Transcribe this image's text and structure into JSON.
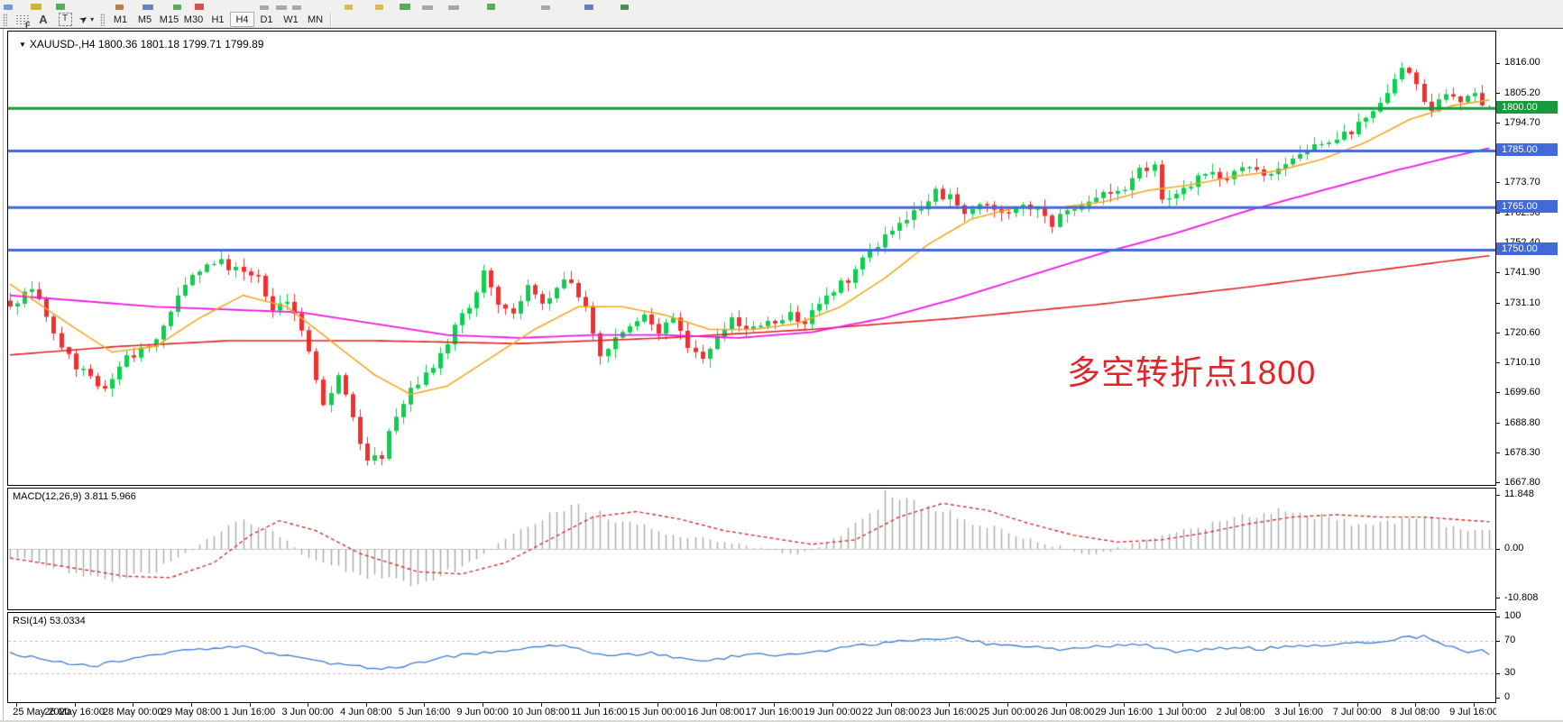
{
  "toolbar": {
    "tools": [
      {
        "name": "fibonacci-retracement",
        "glyph": "F"
      },
      {
        "name": "text",
        "glyph": "A"
      },
      {
        "name": "text-label",
        "glyph": "T"
      },
      {
        "name": "arrows",
        "glyph": "➤"
      }
    ],
    "dropdown_caret": "▾",
    "timeframes": [
      "M1",
      "M5",
      "M15",
      "M30",
      "H1",
      "H4",
      "D1",
      "W1",
      "MN"
    ],
    "active_timeframe": "H4",
    "clipped_row_fragments": [
      [
        4,
        10,
        6,
        "#5b8bd0"
      ],
      [
        34,
        12,
        7,
        "#c9a227"
      ],
      [
        62,
        10,
        7,
        "#3f9d44"
      ],
      [
        128,
        9,
        6,
        "#b06a2a"
      ],
      [
        158,
        12,
        6,
        "#4a6fb5"
      ],
      [
        192,
        9,
        6,
        "#3f9d44"
      ],
      [
        216,
        10,
        7,
        "#cc3333"
      ],
      [
        288,
        10,
        5,
        "#9a9a9a"
      ],
      [
        306,
        12,
        5,
        "#9a9a9a"
      ],
      [
        324,
        10,
        5,
        "#9a9a9a"
      ],
      [
        382,
        9,
        6,
        "#d4b23a"
      ],
      [
        416,
        9,
        6,
        "#d4b23a"
      ],
      [
        443,
        12,
        7,
        "#3f9d44"
      ],
      [
        468,
        12,
        5,
        "#9a9a9a"
      ],
      [
        497,
        12,
        5,
        "#9a9a9a"
      ],
      [
        540,
        9,
        7,
        "#3f9d44"
      ],
      [
        600,
        10,
        5,
        "#9a9a9a"
      ],
      [
        648,
        10,
        6,
        "#4a6fb5"
      ],
      [
        688,
        9,
        6,
        "#35763a"
      ]
    ]
  },
  "chart": {
    "title_marker": "▼",
    "title": "XAUUSD-,H4  1800.36 1801.18 1799.71 1799.89",
    "symbol": "XAUUSD-",
    "period": "H4",
    "ohlc": {
      "open": "1800.36",
      "high": "1801.18",
      "low": "1799.71",
      "close": "1799.89"
    },
    "annotation": {
      "text": "多空转折点1800",
      "color": "#e3242b"
    },
    "price_scale_labels": [
      "1816.00",
      "1805.20",
      "1794.70",
      "1784.20",
      "1773.70",
      "1762.90",
      "1752.40",
      "1741.90",
      "1731.10",
      "1720.60",
      "1710.10",
      "1699.60",
      "1688.80",
      "1678.30",
      "1667.80"
    ],
    "hlines": [
      {
        "price": 1800,
        "label": "1800.00",
        "color": "#169a3c",
        "width": 3
      },
      {
        "price": 1785,
        "label": "1785.00",
        "color": "#4169d8",
        "width": 3
      },
      {
        "price": 1765,
        "label": "1765.00",
        "color": "#4169d8",
        "width": 3
      },
      {
        "price": 1750,
        "label": "1750.00",
        "color": "#4169d8",
        "width": 3
      }
    ]
  },
  "macd": {
    "label": "MACD(12,26,9) 3.811 5.966",
    "scale_labels": [
      "11.848",
      "0.00",
      "-10.808"
    ]
  },
  "rsi": {
    "label": "RSI(14) 53.0334",
    "scale_labels": [
      "100",
      "70",
      "30",
      "0"
    ],
    "levels": [
      70,
      30
    ]
  },
  "time_axis": [
    "25 May 2020",
    "26 May 16:00",
    "28 May 00:00",
    "29 May 08:00",
    "1 Jun 16:00",
    "3 Jun 00:00",
    "4 Jun 08:00",
    "5 Jun 16:00",
    "9 Jun 00:00",
    "10 Jun 08:00",
    "11 Jun 16:00",
    "15 Jun 00:00",
    "16 Jun 08:00",
    "17 Jun 16:00",
    "19 Jun 00:00",
    "22 Jun 08:00",
    "23 Jun 16:00",
    "25 Jun 00:00",
    "26 Jun 08:00",
    "29 Jun 16:00",
    "1 Jul 00:00",
    "2 Jul 08:00",
    "3 Jul 16:00",
    "7 Jul 00:00",
    "8 Jul 08:00",
    "9 Jul 16:00"
  ],
  "colors": {
    "bull": "#0ccf4e",
    "bear": "#ee3030",
    "ma_fast": "#f5a623",
    "ma_mid": "#f018e0",
    "ma_slow": "#e02020",
    "macd_hist": "#a9a9a9",
    "macd_signal": "#d83030",
    "rsi_line": "#3a7bd5",
    "level_dash": "#bdbdbd"
  },
  "chart_data": [
    {
      "type": "candlestick",
      "title": "XAUUSD-,H4",
      "bars": 204,
      "x_tick_label_every_n_bars": 8,
      "price_axis_range": [
        1666.4,
        1827.2
      ],
      "close_anchors": [
        [
          0,
          1731
        ],
        [
          3,
          1736
        ],
        [
          6,
          1722
        ],
        [
          9,
          1708
        ],
        [
          13,
          1702
        ],
        [
          16,
          1712
        ],
        [
          19,
          1716
        ],
        [
          22,
          1728
        ],
        [
          25,
          1742
        ],
        [
          28,
          1746
        ],
        [
          31,
          1744
        ],
        [
          34,
          1740
        ],
        [
          36,
          1730
        ],
        [
          38,
          1733
        ],
        [
          40,
          1722
        ],
        [
          43,
          1694
        ],
        [
          45,
          1705
        ],
        [
          47,
          1690
        ],
        [
          49,
          1674
        ],
        [
          51,
          1678
        ],
        [
          53,
          1692
        ],
        [
          55,
          1700
        ],
        [
          57,
          1708
        ],
        [
          59,
          1712
        ],
        [
          61,
          1722
        ],
        [
          63,
          1730
        ],
        [
          65,
          1743
        ],
        [
          67,
          1730
        ],
        [
          69,
          1726
        ],
        [
          71,
          1736
        ],
        [
          73,
          1732
        ],
        [
          75,
          1737
        ],
        [
          77,
          1740
        ],
        [
          79,
          1730
        ],
        [
          81,
          1714
        ],
        [
          83,
          1718
        ],
        [
          85,
          1722
        ],
        [
          87,
          1727
        ],
        [
          89,
          1722
        ],
        [
          91,
          1727
        ],
        [
          93,
          1717
        ],
        [
          95,
          1710
        ],
        [
          97,
          1718
        ],
        [
          99,
          1725
        ],
        [
          101,
          1723
        ],
        [
          103,
          1722
        ],
        [
          105,
          1725
        ],
        [
          107,
          1727
        ],
        [
          109,
          1725
        ],
        [
          111,
          1730
        ],
        [
          113,
          1736
        ],
        [
          115,
          1740
        ],
        [
          117,
          1746
        ],
        [
          119,
          1752
        ],
        [
          121,
          1757
        ],
        [
          123,
          1762
        ],
        [
          125,
          1766
        ],
        [
          127,
          1770
        ],
        [
          129,
          1768
        ],
        [
          131,
          1762
        ],
        [
          133,
          1766
        ],
        [
          135,
          1763
        ],
        [
          137,
          1762
        ],
        [
          139,
          1766
        ],
        [
          141,
          1763
        ],
        [
          143,
          1758
        ],
        [
          145,
          1764
        ],
        [
          147,
          1766
        ],
        [
          149,
          1768
        ],
        [
          151,
          1770
        ],
        [
          153,
          1772
        ],
        [
          155,
          1778
        ],
        [
          157,
          1780
        ],
        [
          158,
          1768
        ],
        [
          160,
          1771
        ],
        [
          162,
          1774
        ],
        [
          164,
          1777
        ],
        [
          166,
          1775
        ],
        [
          168,
          1777
        ],
        [
          170,
          1780
        ],
        [
          172,
          1776
        ],
        [
          174,
          1780
        ],
        [
          176,
          1783
        ],
        [
          178,
          1785
        ],
        [
          180,
          1787
        ],
        [
          182,
          1790
        ],
        [
          184,
          1792
        ],
        [
          186,
          1797
        ],
        [
          188,
          1803
        ],
        [
          190,
          1810
        ],
        [
          191,
          1815
        ],
        [
          193,
          1808
        ],
        [
          195,
          1800
        ],
        [
          197,
          1805
        ],
        [
          199,
          1801
        ],
        [
          201,
          1806
        ],
        [
          202,
          1801
        ],
        [
          203,
          1800
        ]
      ],
      "ma_fast_anchors": [
        [
          0,
          1738
        ],
        [
          8,
          1724
        ],
        [
          14,
          1714
        ],
        [
          20,
          1716
        ],
        [
          26,
          1726
        ],
        [
          32,
          1734
        ],
        [
          38,
          1730
        ],
        [
          44,
          1718
        ],
        [
          50,
          1706
        ],
        [
          55,
          1699
        ],
        [
          60,
          1702
        ],
        [
          66,
          1712
        ],
        [
          72,
          1722
        ],
        [
          78,
          1730
        ],
        [
          84,
          1730
        ],
        [
          90,
          1727
        ],
        [
          96,
          1722
        ],
        [
          102,
          1722
        ],
        [
          108,
          1724
        ],
        [
          114,
          1730
        ],
        [
          120,
          1740
        ],
        [
          126,
          1752
        ],
        [
          132,
          1761
        ],
        [
          138,
          1765
        ],
        [
          144,
          1765
        ],
        [
          150,
          1767
        ],
        [
          156,
          1771
        ],
        [
          162,
          1773
        ],
        [
          168,
          1776
        ],
        [
          174,
          1778
        ],
        [
          180,
          1782
        ],
        [
          186,
          1788
        ],
        [
          192,
          1796
        ],
        [
          198,
          1801
        ],
        [
          203,
          1803
        ]
      ],
      "ma_mid_anchors": [
        [
          0,
          1734
        ],
        [
          10,
          1732
        ],
        [
          20,
          1730
        ],
        [
          30,
          1729
        ],
        [
          40,
          1728
        ],
        [
          50,
          1724
        ],
        [
          60,
          1720
        ],
        [
          70,
          1719
        ],
        [
          80,
          1720
        ],
        [
          90,
          1720
        ],
        [
          100,
          1719
        ],
        [
          110,
          1721
        ],
        [
          120,
          1726
        ],
        [
          130,
          1733
        ],
        [
          140,
          1741
        ],
        [
          150,
          1749
        ],
        [
          160,
          1756
        ],
        [
          170,
          1764
        ],
        [
          180,
          1771
        ],
        [
          190,
          1778
        ],
        [
          198,
          1783
        ],
        [
          203,
          1786
        ]
      ],
      "ma_slow_anchors": [
        [
          0,
          1713
        ],
        [
          15,
          1716
        ],
        [
          30,
          1718
        ],
        [
          50,
          1718
        ],
        [
          70,
          1717
        ],
        [
          90,
          1719
        ],
        [
          110,
          1722
        ],
        [
          130,
          1726
        ],
        [
          150,
          1731
        ],
        [
          170,
          1737
        ],
        [
          185,
          1742
        ],
        [
          203,
          1748
        ]
      ],
      "horizontal_lines": [
        1800,
        1785,
        1765,
        1750
      ]
    },
    {
      "type": "bar",
      "title": "MACD(12,26,9)",
      "current_macd": 3.811,
      "current_signal": 5.966,
      "y_range": [
        -10.808,
        11.848
      ],
      "histogram_anchors": [
        [
          0,
          -1.5
        ],
        [
          6,
          -4
        ],
        [
          13,
          -7
        ],
        [
          20,
          -4.5
        ],
        [
          25,
          0
        ],
        [
          29,
          4
        ],
        [
          32,
          6
        ],
        [
          36,
          4
        ],
        [
          40,
          -1
        ],
        [
          48,
          -6
        ],
        [
          56,
          -8
        ],
        [
          62,
          -4
        ],
        [
          66,
          0
        ],
        [
          72,
          6
        ],
        [
          77,
          9.5
        ],
        [
          84,
          6
        ],
        [
          92,
          3
        ],
        [
          100,
          1
        ],
        [
          108,
          -1.5
        ],
        [
          114,
          3
        ],
        [
          120,
          11.5
        ],
        [
          126,
          9
        ],
        [
          132,
          6
        ],
        [
          138,
          3
        ],
        [
          144,
          0.5
        ],
        [
          148,
          -1.5
        ],
        [
          152,
          0
        ],
        [
          158,
          3
        ],
        [
          164,
          5
        ],
        [
          170,
          7
        ],
        [
          175,
          8.5
        ],
        [
          180,
          7
        ],
        [
          186,
          5
        ],
        [
          192,
          7
        ],
        [
          196,
          6
        ],
        [
          200,
          4.5
        ],
        [
          203,
          3.8
        ]
      ],
      "signal_anchors": [
        [
          0,
          -2
        ],
        [
          8,
          -4
        ],
        [
          16,
          -6
        ],
        [
          22,
          -6.3
        ],
        [
          28,
          -3
        ],
        [
          33,
          3
        ],
        [
          37,
          6.2
        ],
        [
          42,
          4
        ],
        [
          48,
          -1
        ],
        [
          56,
          -5
        ],
        [
          62,
          -5.5
        ],
        [
          68,
          -3
        ],
        [
          74,
          2
        ],
        [
          80,
          7
        ],
        [
          86,
          8.2
        ],
        [
          92,
          6.5
        ],
        [
          98,
          4
        ],
        [
          104,
          2.5
        ],
        [
          110,
          1
        ],
        [
          116,
          2
        ],
        [
          122,
          7
        ],
        [
          128,
          10
        ],
        [
          134,
          8.5
        ],
        [
          140,
          5.5
        ],
        [
          146,
          3
        ],
        [
          152,
          1.5
        ],
        [
          158,
          2
        ],
        [
          164,
          3.5
        ],
        [
          170,
          5.5
        ],
        [
          176,
          7
        ],
        [
          182,
          7.5
        ],
        [
          188,
          7
        ],
        [
          194,
          7
        ],
        [
          198,
          6.5
        ],
        [
          203,
          5.966
        ]
      ]
    },
    {
      "type": "line",
      "title": "RSI(14)",
      "current": 53.0334,
      "y_range": [
        0,
        100
      ],
      "levels": [
        70,
        30
      ],
      "value_anchors": [
        [
          0,
          55
        ],
        [
          4,
          48
        ],
        [
          8,
          42
        ],
        [
          12,
          40
        ],
        [
          16,
          48
        ],
        [
          20,
          52
        ],
        [
          26,
          60
        ],
        [
          32,
          62
        ],
        [
          36,
          55
        ],
        [
          40,
          48
        ],
        [
          44,
          42
        ],
        [
          48,
          38
        ],
        [
          52,
          36
        ],
        [
          56,
          42
        ],
        [
          60,
          50
        ],
        [
          64,
          55
        ],
        [
          68,
          58
        ],
        [
          72,
          62
        ],
        [
          76,
          64
        ],
        [
          80,
          55
        ],
        [
          84,
          52
        ],
        [
          88,
          55
        ],
        [
          92,
          48
        ],
        [
          96,
          45
        ],
        [
          100,
          52
        ],
        [
          104,
          53
        ],
        [
          108,
          52
        ],
        [
          112,
          58
        ],
        [
          116,
          63
        ],
        [
          120,
          68
        ],
        [
          124,
          70
        ],
        [
          128,
          73
        ],
        [
          130,
          76
        ],
        [
          132,
          70
        ],
        [
          136,
          64
        ],
        [
          140,
          62
        ],
        [
          144,
          60
        ],
        [
          148,
          62
        ],
        [
          152,
          64
        ],
        [
          156,
          66
        ],
        [
          158,
          60
        ],
        [
          160,
          55
        ],
        [
          164,
          60
        ],
        [
          168,
          62
        ],
        [
          172,
          60
        ],
        [
          176,
          64
        ],
        [
          180,
          65
        ],
        [
          184,
          66
        ],
        [
          188,
          70
        ],
        [
          192,
          74
        ],
        [
          194,
          76
        ],
        [
          196,
          68
        ],
        [
          198,
          62
        ],
        [
          200,
          57
        ],
        [
          202,
          60
        ],
        [
          203,
          53
        ]
      ]
    }
  ]
}
